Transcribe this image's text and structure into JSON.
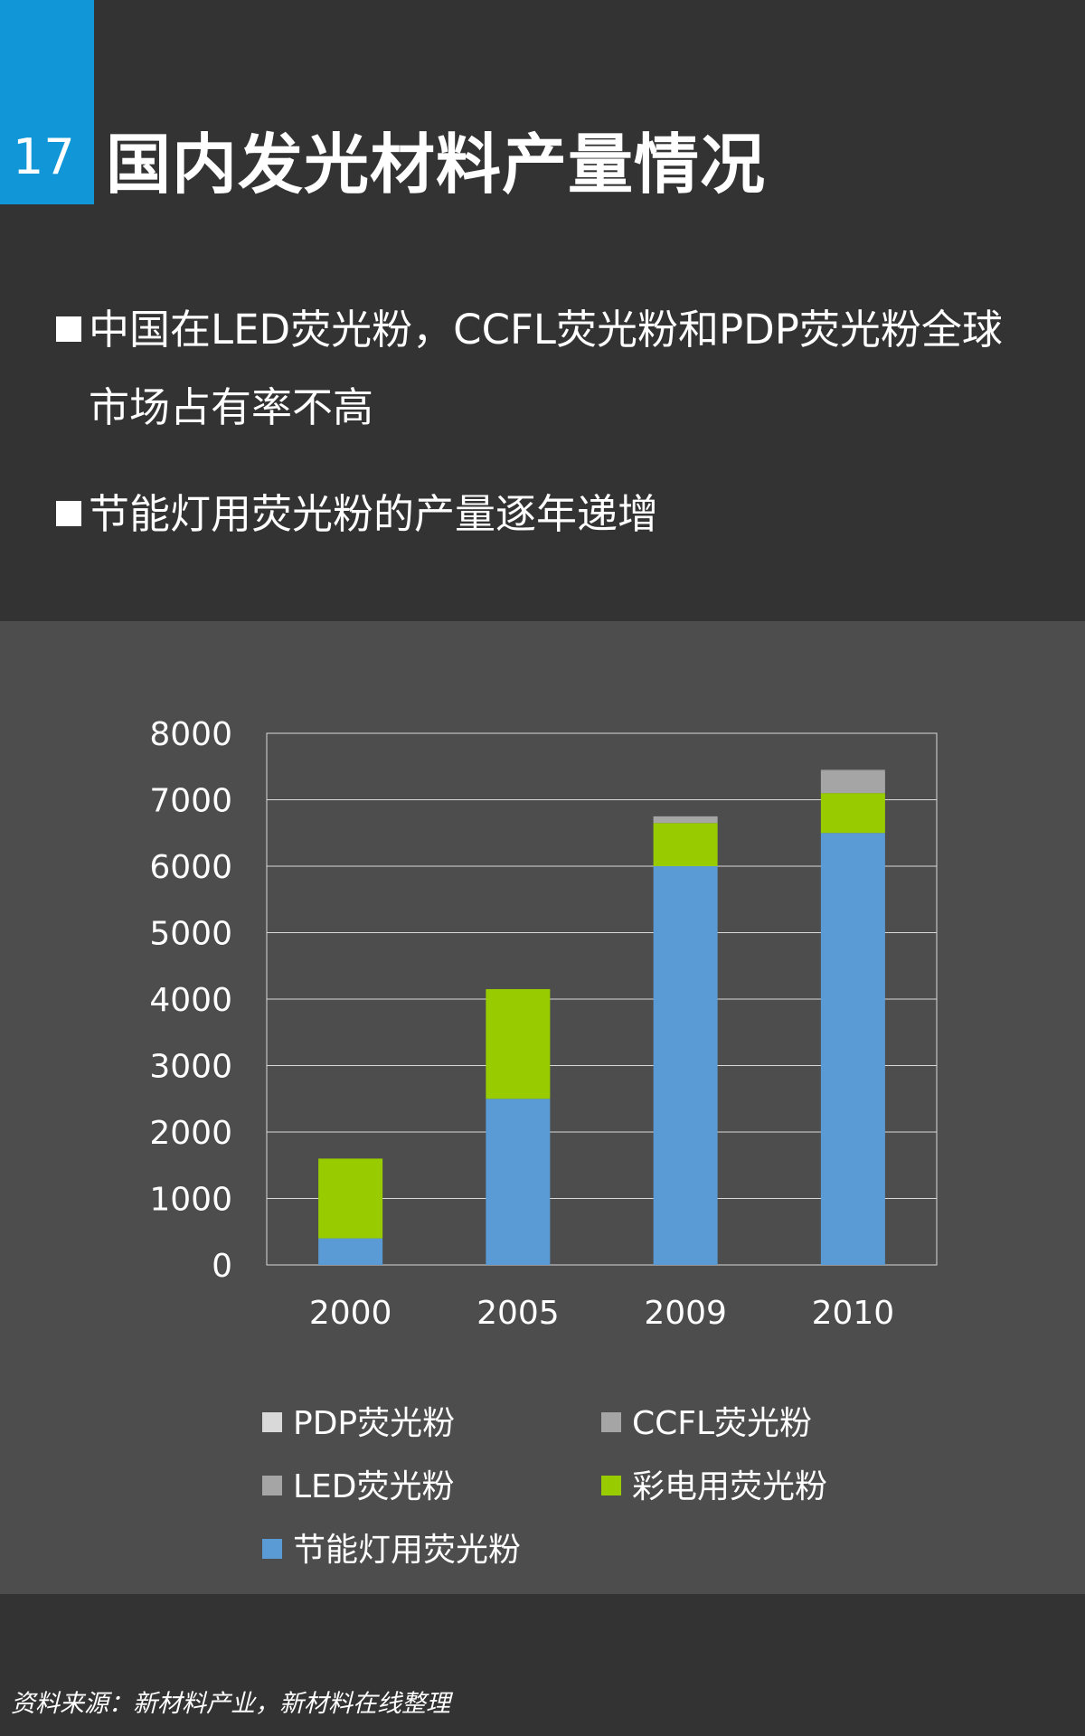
{
  "header": {
    "number": "17",
    "title": "国内发光材料产量情况"
  },
  "bullets": [
    "中国在LED荧光粉，CCFL荧光粉和PDP荧光粉全球市场占有率不高",
    "节能灯用荧光粉的产量逐年递增"
  ],
  "chart_data": {
    "type": "bar",
    "stacked": true,
    "categories": [
      "2000",
      "2005",
      "2009",
      "2010"
    ],
    "ylim": [
      0,
      8000
    ],
    "yticks": [
      "0",
      "1000",
      "2000",
      "3000",
      "4000",
      "5000",
      "6000",
      "7000",
      "8000"
    ],
    "grid": true,
    "legend_position": "bottom",
    "series": [
      {
        "name": "节能灯用荧光粉",
        "color": "#5b9bd5",
        "values": [
          400,
          2500,
          6000,
          6500
        ]
      },
      {
        "name": "彩电用荧光粉",
        "color": "#99cc00",
        "values": [
          1200,
          1650,
          650,
          600
        ]
      },
      {
        "name": "LED荧光粉",
        "color": "#a5a5a5",
        "values": [
          0,
          0,
          100,
          330
        ]
      },
      {
        "name": "CCFL荧光粉",
        "color": "#a5a5a5",
        "values": [
          0,
          0,
          0,
          20
        ]
      },
      {
        "name": "PDP荧光粉",
        "color": "#d9d9d9",
        "values": [
          0,
          0,
          0,
          0
        ]
      }
    ],
    "legend_order": [
      "PDP荧光粉",
      "CCFL荧光粉",
      "LED荧光粉",
      "彩电用荧光粉",
      "节能灯用荧光粉"
    ]
  },
  "footer": {
    "source": "资料来源：新材料产业，新材料在线整理"
  }
}
